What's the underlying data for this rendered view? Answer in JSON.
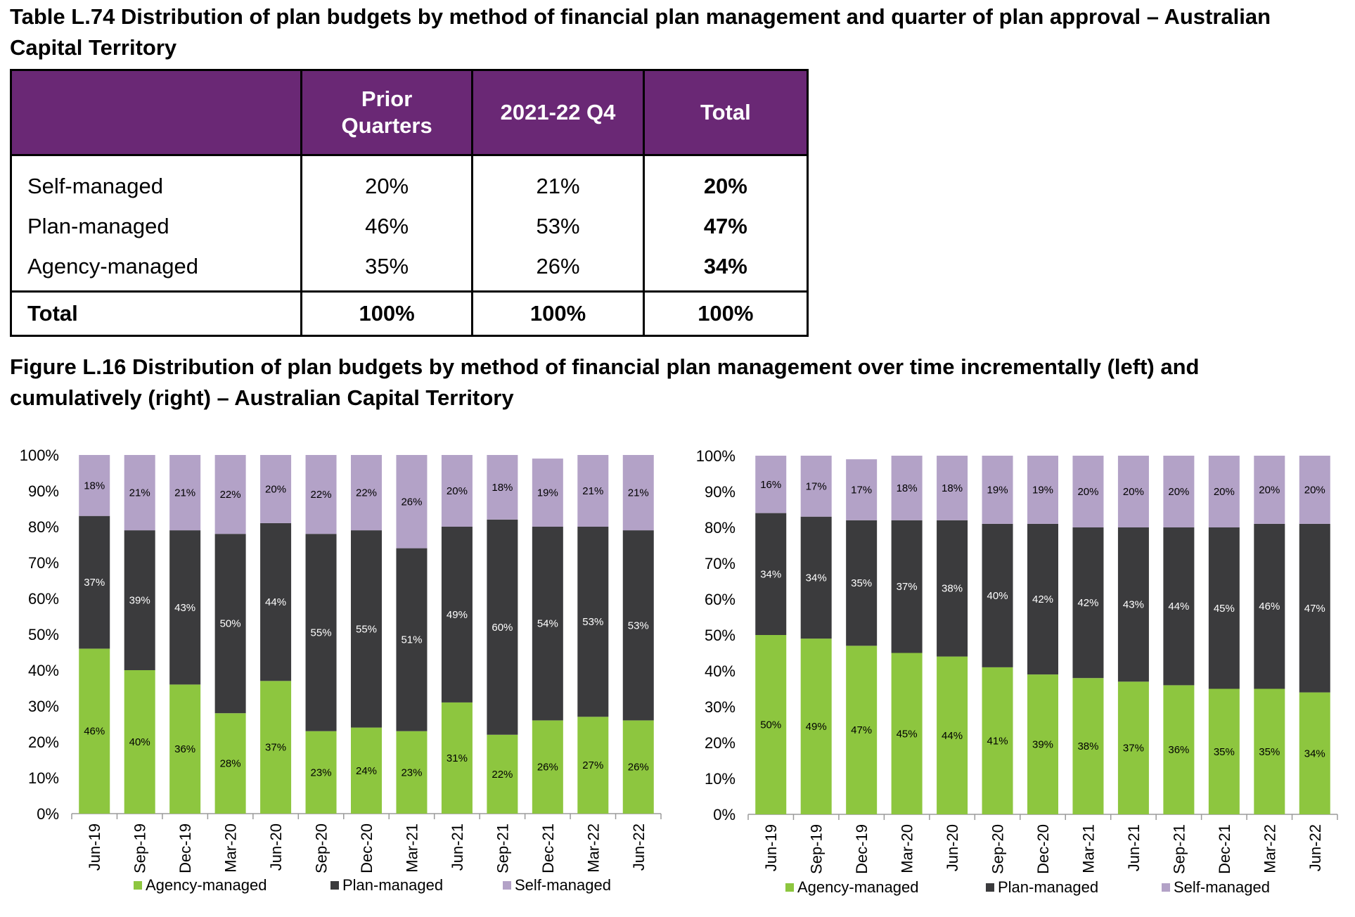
{
  "table": {
    "title": "Table L.74 Distribution of plan budgets by method of financial plan management and quarter of plan approval – Australian Capital Territory",
    "headers": [
      "",
      "Prior Quarters",
      "2021-22 Q4",
      "Total"
    ],
    "rows": [
      {
        "label": "Self-managed",
        "prior": "20%",
        "q4": "21%",
        "total": "20%"
      },
      {
        "label": "Plan-managed",
        "prior": "46%",
        "q4": "53%",
        "total": "47%"
      },
      {
        "label": "Agency-managed",
        "prior": "35%",
        "q4": "26%",
        "total": "34%"
      }
    ],
    "total_row": {
      "label": "Total",
      "prior": "100%",
      "q4": "100%",
      "total": "100%"
    }
  },
  "figure": {
    "title": "Figure L.16 Distribution of plan budgets by method of financial plan management over time incrementally (left) and cumulatively (right) – Australian Capital Territory"
  },
  "colors": {
    "agency": "#8dc63f",
    "plan": "#3b3b3d",
    "self": "#b3a2c7",
    "header_bg": "#6a2875"
  },
  "chart_data": [
    {
      "type": "bar",
      "stacked": true,
      "percent": true,
      "categories": [
        "Jun-19",
        "Sep-19",
        "Dec-19",
        "Mar-20",
        "Jun-20",
        "Sep-20",
        "Dec-20",
        "Mar-21",
        "Jun-21",
        "Sep-21",
        "Dec-21",
        "Mar-22",
        "Jun-22"
      ],
      "series": [
        {
          "name": "Agency-managed",
          "values": [
            46,
            40,
            36,
            28,
            37,
            23,
            24,
            23,
            31,
            22,
            26,
            27,
            26
          ]
        },
        {
          "name": "Plan-managed",
          "values": [
            37,
            39,
            43,
            50,
            44,
            55,
            55,
            51,
            49,
            60,
            54,
            53,
            53
          ]
        },
        {
          "name": "Self-managed",
          "values": [
            18,
            21,
            21,
            22,
            20,
            22,
            22,
            26,
            20,
            18,
            19,
            21,
            21
          ]
        }
      ],
      "yticks": [
        "0%",
        "10%",
        "20%",
        "30%",
        "40%",
        "50%",
        "60%",
        "70%",
        "80%",
        "90%",
        "100%"
      ],
      "ylim": [
        0,
        100
      ],
      "legend": "bottom"
    },
    {
      "type": "bar",
      "stacked": true,
      "percent": true,
      "categories": [
        "Jun-19",
        "Sep-19",
        "Dec-19",
        "Mar-20",
        "Jun-20",
        "Sep-20",
        "Dec-20",
        "Mar-21",
        "Jun-21",
        "Sep-21",
        "Dec-21",
        "Mar-22",
        "Jun-22"
      ],
      "series": [
        {
          "name": "Agency-managed",
          "values": [
            50,
            49,
            47,
            45,
            44,
            41,
            39,
            38,
            37,
            36,
            35,
            35,
            34
          ]
        },
        {
          "name": "Plan-managed",
          "values": [
            34,
            34,
            35,
            37,
            38,
            40,
            42,
            42,
            43,
            44,
            45,
            46,
            47
          ]
        },
        {
          "name": "Self-managed",
          "values": [
            16,
            17,
            17,
            18,
            18,
            19,
            19,
            20,
            20,
            20,
            20,
            20,
            20
          ]
        }
      ],
      "yticks": [
        "0%",
        "10%",
        "20%",
        "30%",
        "40%",
        "50%",
        "60%",
        "70%",
        "80%",
        "90%",
        "100%"
      ],
      "ylim": [
        0,
        100
      ],
      "legend": "bottom"
    }
  ]
}
